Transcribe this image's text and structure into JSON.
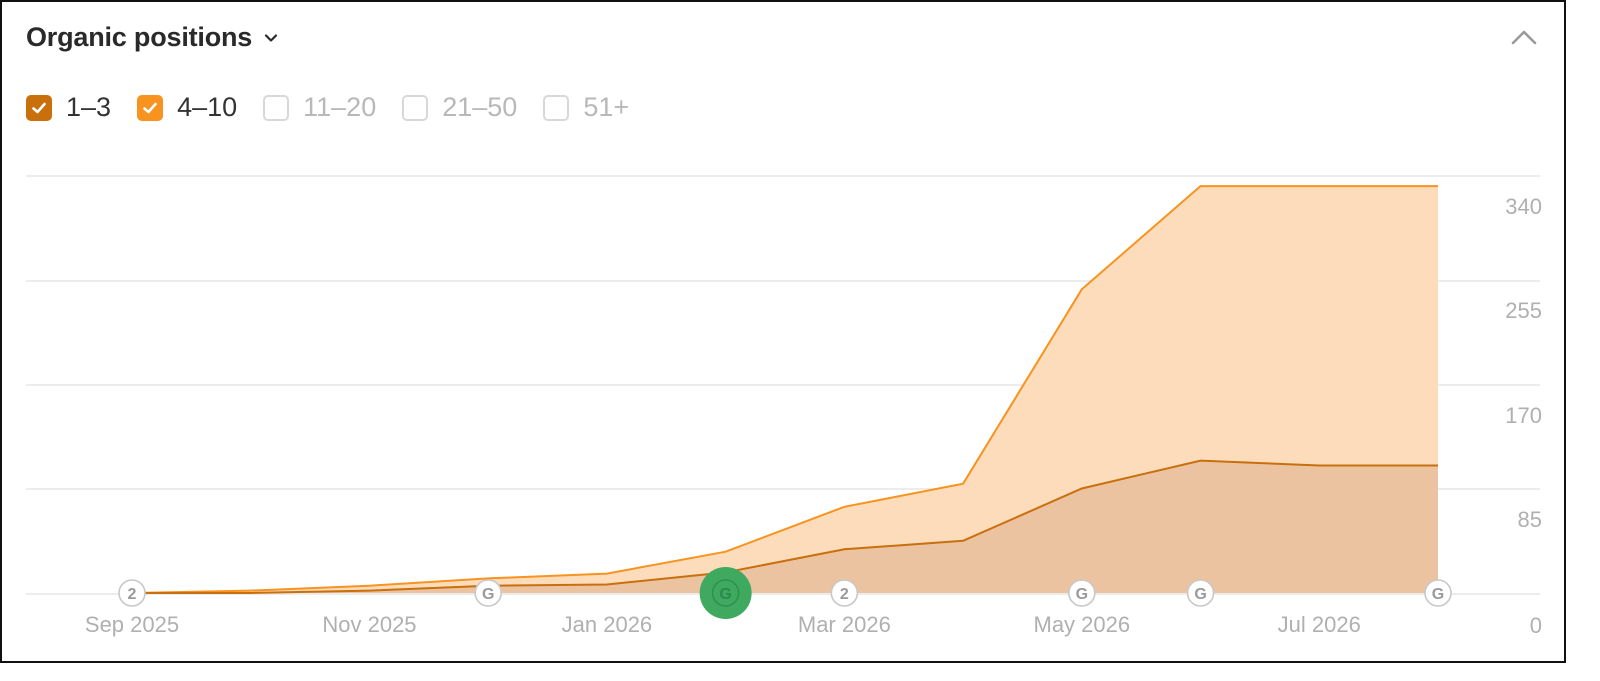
{
  "header": {
    "title": "Organic positions"
  },
  "icons": {
    "dropdown": "chevron-down-icon",
    "collapse": "chevron-up-icon",
    "check": "check-icon"
  },
  "colors": {
    "range_1_3": "#c96f0c",
    "range_4_10": "#f7931e",
    "area_1_3": "#ecc3a0",
    "area_4_10": "#fcdcbb",
    "annotation_highlight": "#3fa960"
  },
  "legend": [
    {
      "label": "1–3",
      "checked": true
    },
    {
      "label": "4–10",
      "checked": true
    },
    {
      "label": "11–20",
      "checked": false
    },
    {
      "label": "21–50",
      "checked": false
    },
    {
      "label": "51+",
      "checked": false
    }
  ],
  "chart_data": {
    "type": "area",
    "stacked": true,
    "x": [
      "2025-09",
      "2025-10",
      "2025-11",
      "2025-12",
      "2026-01",
      "2026-02",
      "2026-03",
      "2026-04",
      "2026-05",
      "2026-06",
      "2026-07",
      "2026-08"
    ],
    "series": [
      {
        "name": "1–3",
        "values": [
          0,
          0,
          2,
          6,
          7,
          17,
          36,
          43,
          86,
          109,
          105,
          105
        ]
      },
      {
        "name": "4–10",
        "values": [
          0,
          2,
          4,
          6,
          9,
          17,
          35,
          47,
          164,
          226,
          230,
          230
        ]
      }
    ],
    "x_tick_labels": [
      "Sep 2025",
      "Nov 2025",
      "Jan 2026",
      "Mar 2026",
      "May 2026",
      "Jul 2026"
    ],
    "y_ticks": [
      0,
      85,
      170,
      255,
      340
    ],
    "ylim": [
      0,
      340
    ],
    "y_axis_position": "right",
    "grid": true,
    "annotations": [
      {
        "x": "2025-09",
        "label": "2",
        "highlighted": false
      },
      {
        "x": "2025-12",
        "label": "G",
        "highlighted": false
      },
      {
        "x": "2026-02",
        "label": "G",
        "highlighted": true
      },
      {
        "x": "2026-03",
        "label": "2",
        "highlighted": false
      },
      {
        "x": "2026-05",
        "label": "G",
        "highlighted": false
      },
      {
        "x": "2026-06",
        "label": "G",
        "highlighted": false
      },
      {
        "x": "2026-08",
        "label": "G",
        "highlighted": false
      }
    ]
  }
}
